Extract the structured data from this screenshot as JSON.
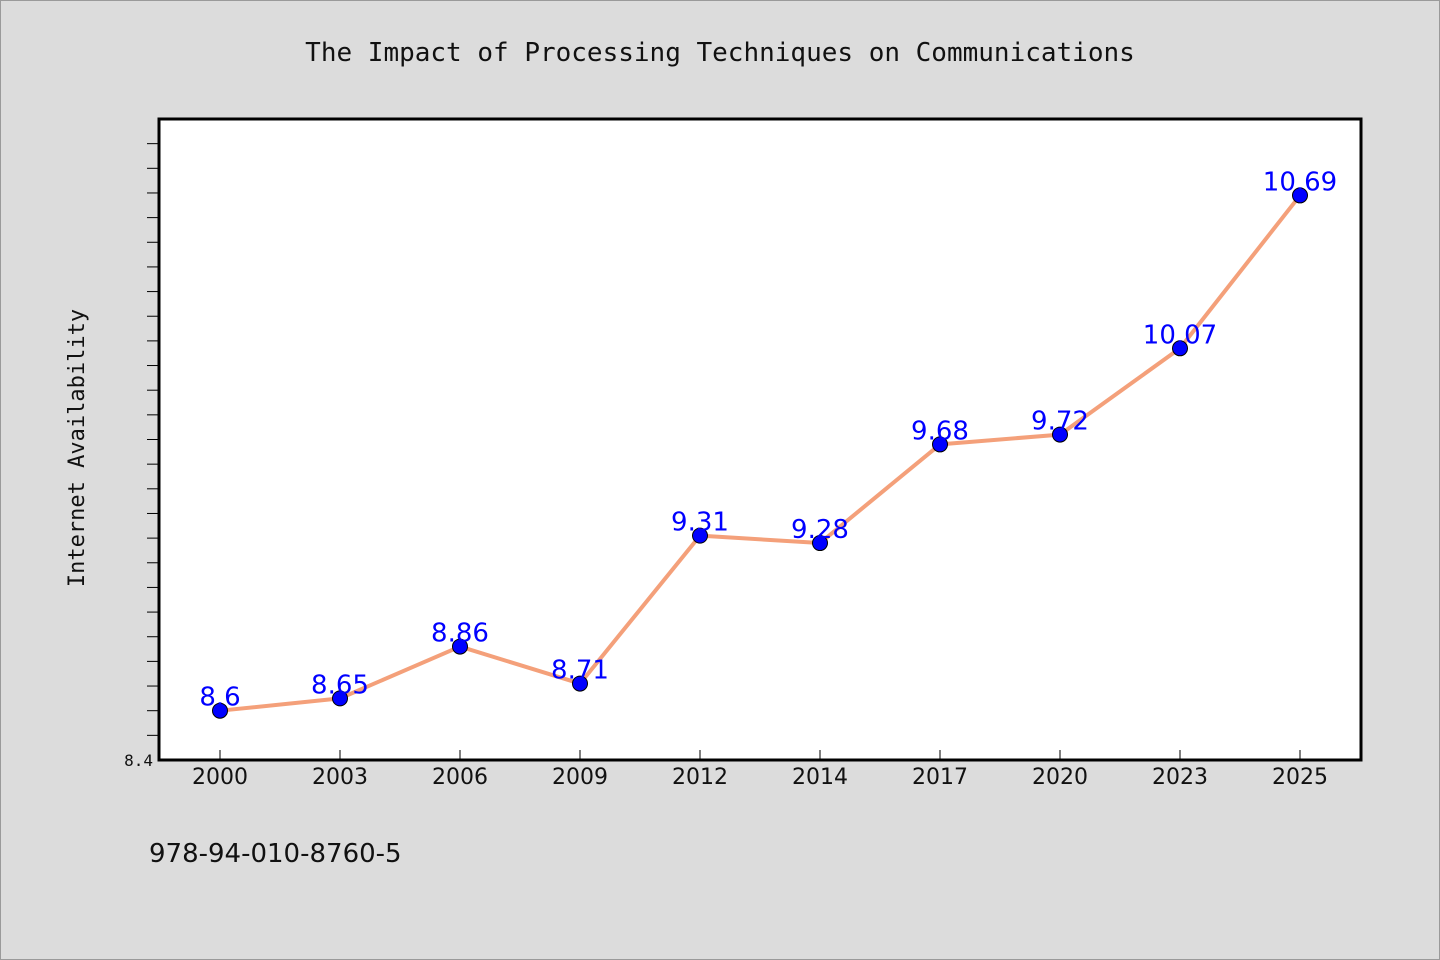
{
  "chart_data": {
    "type": "line",
    "title": "The Impact of Processing Techniques on Communications",
    "xlabel": "",
    "ylabel": "Internet Availability",
    "categories": [
      "2000",
      "2003",
      "2006",
      "2009",
      "2012",
      "2014",
      "2017",
      "2020",
      "2023",
      "2025"
    ],
    "series": [
      {
        "values": [
          8.6,
          8.65,
          8.86,
          8.71,
          9.31,
          9.28,
          9.68,
          9.72,
          10.07,
          10.69
        ],
        "data_labels": [
          "8.6",
          "8.65",
          "8.86",
          "8.71",
          "9.31",
          "9.28",
          "9.68",
          "9.72",
          "10.07",
          "10.69"
        ],
        "line_color": "#f4a07a",
        "marker_color": "#0000ff"
      }
    ],
    "ylim": [
      8.4,
      11.0
    ],
    "y_tick_labels": [
      "8.4"
    ],
    "grid": false,
    "legend": "none",
    "plot_background": "#ffffff",
    "figure_background": "#dcdcdc"
  },
  "footer": {
    "isbn": "978-94-010-8760-5"
  }
}
